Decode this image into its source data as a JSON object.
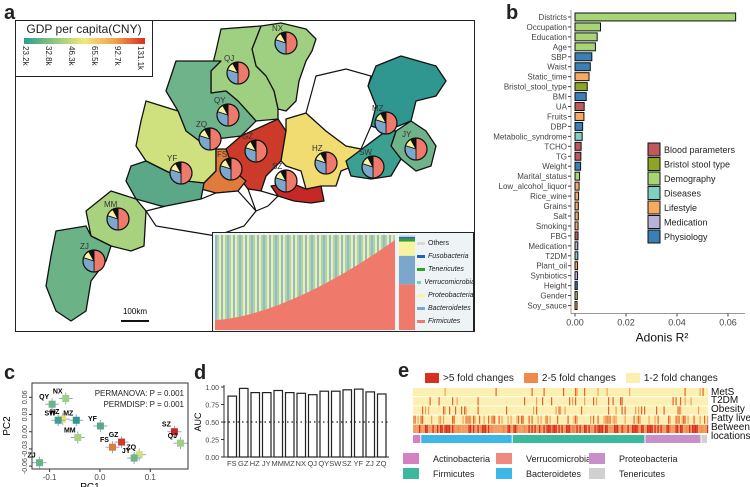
{
  "panels": {
    "a": {
      "letter": "a",
      "gdp_legend": {
        "title": "GDP per capita(CNY)",
        "ticks": [
          "23.2k",
          "32.8k",
          "46.3k",
          "65.5k",
          "92.7k",
          "131.1k"
        ],
        "colors": [
          "#2a9d8f",
          "#8fc77e",
          "#f2e87a",
          "#f2a24a",
          "#d7301f"
        ]
      },
      "scale_bar": "100km",
      "districts": [
        {
          "code": "NX",
          "color": "#9fcf80"
        },
        {
          "code": "QJ",
          "color": "#9fcf80"
        },
        {
          "code": "QY",
          "color": "#6fb38a"
        },
        {
          "code": "ZQ",
          "color": "#cfe07e"
        },
        {
          "code": "GZ",
          "color": "#cc3b2a"
        },
        {
          "code": "FS",
          "color": "#e07b3c"
        },
        {
          "code": "SZ",
          "color": "#c62828"
        },
        {
          "code": "HZ",
          "color": "#f0dc70"
        },
        {
          "code": "MZ",
          "color": "#2f978f"
        },
        {
          "code": "JY",
          "color": "#6fb38a"
        },
        {
          "code": "SW",
          "color": "#3ca091"
        },
        {
          "code": "YF",
          "color": "#5aa887"
        },
        {
          "code": "MM",
          "color": "#a8d27e"
        },
        {
          "code": "ZJ",
          "color": "#6bb386"
        }
      ],
      "inset_legend": [
        {
          "name": "Others",
          "color": "#d9d9d9"
        },
        {
          "name": "Fusobacteria",
          "color": "#2166ac"
        },
        {
          "name": "Tenericutes",
          "color": "#33a02c"
        },
        {
          "name": "Verrucomicrobia",
          "color": "#7fcdbb"
        },
        {
          "name": "Proteobacteria",
          "color": "#f7f3a0"
        },
        {
          "name": "Bacteroidetes",
          "color": "#7ba7cc"
        },
        {
          "name": "Firmicutes",
          "color": "#ef7a6b"
        }
      ]
    },
    "b": {
      "letter": "b",
      "legend": [
        {
          "name": "Blood parameters",
          "color": "#c0595b"
        },
        {
          "name": "Bristol stool type",
          "color": "#8ea424"
        },
        {
          "name": "Demography",
          "color": "#a7d474"
        },
        {
          "name": "Diseases",
          "color": "#80d0c2"
        },
        {
          "name": "Lifestyle",
          "color": "#f5aa60"
        },
        {
          "name": "Medication",
          "color": "#b8b4d8"
        },
        {
          "name": "Physiology",
          "color": "#3a7fb8"
        }
      ]
    },
    "c": {
      "letter": "c",
      "annotations": [
        "PERMANOVA: P = 0.001",
        "PERMDISP: P = 0.001"
      ]
    },
    "d": {
      "letter": "d"
    },
    "e": {
      "letter": "e",
      "fold_legend": [
        {
          "name": ">5 fold changes",
          "color": "#d7301f"
        },
        {
          "name": "2-5 fold changes",
          "color": "#f08a4b"
        },
        {
          "name": "1-2 fold changes",
          "color": "#fbf0b0"
        }
      ],
      "rows": [
        "MetS",
        "T2DM",
        "Obesity",
        "Fatty liver",
        "Between-",
        "locations"
      ],
      "phylum_legend": [
        {
          "name": "Actinobacteria",
          "color": "#d580c0"
        },
        {
          "name": "Firmicutes",
          "color": "#3cb89c"
        },
        {
          "name": "Verrucomicrobia",
          "color": "#f08a80"
        },
        {
          "name": "Bacteroidetes",
          "color": "#3cb7e6"
        },
        {
          "name": "Proteobacteria",
          "color": "#c98fc9"
        },
        {
          "name": "Tenericutes",
          "color": "#d0d0d0"
        }
      ]
    }
  },
  "chart_data": [
    {
      "type": "bar",
      "orientation": "horizontal",
      "title": "",
      "xlabel": "Adonis R²",
      "ylabel": "",
      "xlim": [
        0,
        0.065
      ],
      "xticks": [
        "0.00",
        "0.02",
        "0.04",
        "0.06"
      ],
      "categories": [
        "Districts",
        "Occupation",
        "Education",
        "Age",
        "SBP",
        "Waist",
        "Static_time",
        "Bristol_stool_type",
        "BMI",
        "UA",
        "Fruits",
        "DBP",
        "Metabolic_syndrome",
        "TCHO",
        "TG",
        "Weight",
        "Marital_status",
        "Low_alcohol_liquor",
        "Rice_wine",
        "Grains",
        "Salt",
        "Smoking",
        "FBG",
        "Medication",
        "T2DM",
        "Plant_oil",
        "Synbiotics",
        "Height",
        "Gender",
        "Soy_sauce"
      ],
      "values": [
        0.063,
        0.01,
        0.0087,
        0.008,
        0.0066,
        0.006,
        0.0055,
        0.0048,
        0.0044,
        0.0036,
        0.0035,
        0.003,
        0.0028,
        0.0024,
        0.0023,
        0.0022,
        0.0018,
        0.0016,
        0.0014,
        0.0013,
        0.0013,
        0.0012,
        0.0012,
        0.0011,
        0.0011,
        0.001,
        0.001,
        0.0009,
        0.0009,
        0.0008
      ],
      "groups": [
        "Demography",
        "Demography",
        "Demography",
        "Demography",
        "Physiology",
        "Physiology",
        "Lifestyle",
        "Bristol stool type",
        "Physiology",
        "Blood parameters",
        "Lifestyle",
        "Physiology",
        "Diseases",
        "Blood parameters",
        "Blood parameters",
        "Physiology",
        "Demography",
        "Lifestyle",
        "Lifestyle",
        "Lifestyle",
        "Lifestyle",
        "Lifestyle",
        "Blood parameters",
        "Medication",
        "Diseases",
        "Lifestyle",
        "Medication",
        "Physiology",
        "Demography",
        "Lifestyle"
      ],
      "legend_position": "right"
    },
    {
      "type": "scatter",
      "title": "",
      "xlabel": "PC1",
      "ylabel": "PC2",
      "xlim": [
        -0.135,
        0.175
      ],
      "ylim": [
        -0.065,
        0.085
      ],
      "xticks": [
        "-0.1",
        "0.0",
        "0.1"
      ],
      "yticks": [
        "-0.06",
        "-0.03",
        "0.00",
        "0.03",
        "0.06"
      ],
      "points": [
        {
          "label": "QY",
          "x": -0.095,
          "y": 0.048,
          "color": "#6fb38a"
        },
        {
          "label": "NX",
          "x": -0.068,
          "y": 0.058,
          "color": "#9fcf80"
        },
        {
          "label": "HZ",
          "x": -0.074,
          "y": 0.022,
          "color": "#f0dc70"
        },
        {
          "label": "MZ",
          "x": -0.047,
          "y": 0.02,
          "color": "#2f978f"
        },
        {
          "label": "SW",
          "x": -0.083,
          "y": 0.02,
          "color": "#3ca091"
        },
        {
          "label": "YF",
          "x": 0.001,
          "y": 0.01,
          "color": "#5aa887"
        },
        {
          "label": "MM",
          "x": -0.044,
          "y": -0.01,
          "color": "#a8d27e"
        },
        {
          "label": "GZ",
          "x": 0.043,
          "y": -0.018,
          "color": "#cc3b2a"
        },
        {
          "label": "FS",
          "x": 0.025,
          "y": -0.027,
          "color": "#e07b3c"
        },
        {
          "label": "ZQ",
          "x": 0.078,
          "y": -0.04,
          "color": "#cfe07e"
        },
        {
          "label": "JY",
          "x": 0.068,
          "y": -0.046,
          "color": "#6fb38a"
        },
        {
          "label": "SZ",
          "x": 0.148,
          "y": 0.0,
          "color": "#c62828"
        },
        {
          "label": "QJ",
          "x": 0.16,
          "y": -0.02,
          "color": "#9fcf80"
        },
        {
          "label": "ZJ",
          "x": -0.12,
          "y": -0.054,
          "color": "#6bb386"
        }
      ]
    },
    {
      "type": "bar",
      "title": "",
      "xlabel": "",
      "ylabel": "AUC",
      "ylim": [
        0,
        1.0
      ],
      "yticks": [
        "0.00",
        "0.25",
        "0.50",
        "0.75",
        "1.00"
      ],
      "reference_line": 0.5,
      "categories": [
        "FS",
        "GZ",
        "HZ",
        "JY",
        "MM",
        "MZ",
        "NX",
        "QJ",
        "QY",
        "SW",
        "SZ",
        "YF",
        "ZJ",
        "ZQ"
      ],
      "values": [
        0.87,
        0.98,
        0.92,
        0.92,
        0.95,
        0.92,
        0.91,
        0.89,
        0.94,
        0.94,
        0.96,
        0.97,
        0.93,
        0.9
      ]
    }
  ]
}
